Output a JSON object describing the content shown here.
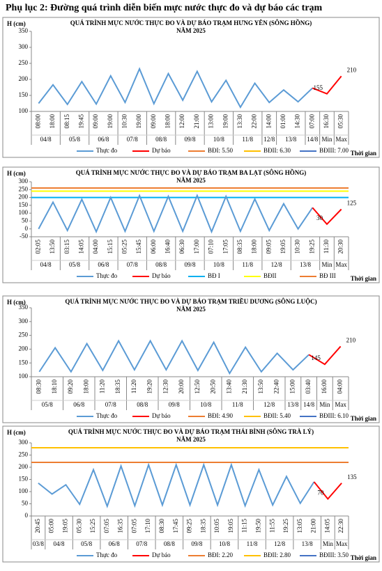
{
  "title": "Phụ lục 2: Đường quá trình diễn biến mực nước thực đo và dự báo các trạm",
  "chart_data": [
    {
      "type": "line",
      "title": "QUÁ TRÌNH MỰC NƯỚC THỰC ĐO VÀ DỰ BÁO TRẠM HƯNG YÊN  (SÔNG HỒNG)",
      "subtitle": "NĂM 2025",
      "y_label": "H (cm)",
      "x_label": "Thời gian",
      "categories": [
        "08:00",
        "18:00",
        "08:15",
        "19:45",
        "09:00",
        "19:00",
        "10:30",
        "19:00",
        "09:00",
        "18:00",
        "12:00",
        "21:00",
        "13:00",
        "19:00",
        "13:30",
        "22:00",
        "14:00",
        "01:00",
        "14:30",
        "07:00",
        "16:30",
        "05:30"
      ],
      "groups": [
        {
          "label": "04/8",
          "size": 2
        },
        {
          "label": "05/8",
          "size": 2
        },
        {
          "label": "06/8",
          "size": 2
        },
        {
          "label": "07/8",
          "size": 2
        },
        {
          "label": "08/8",
          "size": 2
        },
        {
          "label": "09/8",
          "size": 2
        },
        {
          "label": "10/8",
          "size": 2
        },
        {
          "label": "11/8",
          "size": 2
        },
        {
          "label": "12/8",
          "size": 1
        },
        {
          "label": "13/8",
          "size": 2
        },
        {
          "label": "14/8",
          "size": 1
        },
        {
          "label": "Min",
          "size": 1
        },
        {
          "label": "Max",
          "size": 1
        }
      ],
      "series": [
        {
          "name": "Thực đo",
          "color": "#5b9bd5",
          "values": [
            125,
            183,
            122,
            193,
            123,
            211,
            128,
            233,
            124,
            218,
            135,
            225,
            130,
            197,
            113,
            188,
            128,
            167,
            130,
            173,
            null,
            null
          ]
        },
        {
          "name": "Dự báo",
          "color": "#ff0000",
          "values": [
            null,
            null,
            null,
            null,
            null,
            null,
            null,
            null,
            null,
            null,
            null,
            null,
            null,
            null,
            null,
            null,
            null,
            null,
            null,
            173,
            155,
            210
          ]
        }
      ],
      "thresholds": [
        {
          "name": "BĐI: 5.50",
          "color": "#ed7d31"
        },
        {
          "name": "BĐII: 6.30",
          "color": "#ffc000"
        },
        {
          "name": "BĐIII: 7.00",
          "color": "#4472c4"
        }
      ],
      "ylim": [
        100,
        350
      ],
      "yticks": [
        100,
        150,
        200,
        250,
        300,
        350
      ]
    },
    {
      "type": "line",
      "title": "QUÁ TRÌNH MỰC NƯỚC THỰC ĐO VÀ DỰ BÁO TRẠM BA LẠT (SÔNG HỒNG)",
      "subtitle": "NĂM 2025",
      "y_label": "H (cm)",
      "x_label": "Thời gian",
      "categories": [
        "02:05",
        "13:50",
        "03:15",
        "14:05",
        "04:00",
        "15:15",
        "05:25",
        "15:45",
        "06:00",
        "16:40",
        "06:30",
        "17:00",
        "07:10",
        "17:05",
        "08:35",
        "18:00",
        "09:05",
        "19:05",
        "10:30",
        "19:25",
        "11:30",
        "20:30"
      ],
      "groups": [
        {
          "label": "04/8",
          "size": 2
        },
        {
          "label": "05/8",
          "size": 2
        },
        {
          "label": "06/8",
          "size": 2
        },
        {
          "label": "07/8",
          "size": 2
        },
        {
          "label": "08/8",
          "size": 2
        },
        {
          "label": "09/8",
          "size": 2
        },
        {
          "label": "10/8",
          "size": 2
        },
        {
          "label": "11/8",
          "size": 2
        },
        {
          "label": "12/8",
          "size": 2
        },
        {
          "label": "13/8",
          "size": 2
        },
        {
          "label": "Min",
          "size": 1
        },
        {
          "label": "Max",
          "size": 1
        }
      ],
      "series": [
        {
          "name": "Thực đo",
          "color": "#5b9bd5",
          "values": [
            0,
            170,
            -10,
            188,
            -18,
            200,
            -15,
            212,
            -15,
            207,
            -15,
            212,
            -18,
            207,
            -15,
            190,
            -10,
            160,
            0,
            135,
            null,
            null
          ]
        },
        {
          "name": "Dự báo",
          "color": "#ff0000",
          "values": [
            null,
            null,
            null,
            null,
            null,
            null,
            null,
            null,
            null,
            null,
            null,
            null,
            null,
            null,
            null,
            null,
            null,
            null,
            null,
            135,
            30,
            125
          ]
        }
      ],
      "thresholds": [
        {
          "name": "BĐ I",
          "color": "#00b0f0",
          "value": 200
        },
        {
          "name": "BĐII",
          "color": "#ffff00",
          "value": 240
        },
        {
          "name": "BĐ III",
          "color": "#ed7d31",
          "value": 260
        }
      ],
      "ylim": [
        -50,
        300
      ],
      "yticks": [
        -50,
        0,
        50,
        100,
        150,
        200,
        250,
        300
      ]
    },
    {
      "type": "line",
      "title": "QUÁ TRÌNH MỰC NƯỚC THỰC ĐO VÀ DỰ BÁO TRẠM TRIỀU DƯƠNG  (SÔNG LUỘC)",
      "subtitle": "NĂM 2025",
      "y_label": "H (cm)",
      "x_label": "Thời gian",
      "categories": [
        "08:30",
        "18:10",
        "09:20",
        "18:00",
        "11:20",
        "18:35",
        "11:20",
        "19:20",
        "12:30",
        "20:00",
        "12:50",
        "20:50",
        "13:40",
        "21:30",
        "13:50",
        "22:40",
        "15:00",
        "03:40",
        "16:00",
        "04:00"
      ],
      "groups": [
        {
          "label": "05/8",
          "size": 2
        },
        {
          "label": "06/8",
          "size": 2
        },
        {
          "label": "07/8",
          "size": 2
        },
        {
          "label": "08/8",
          "size": 2
        },
        {
          "label": "09/8",
          "size": 2
        },
        {
          "label": "10/8",
          "size": 2
        },
        {
          "label": "11/8",
          "size": 2
        },
        {
          "label": "12/8",
          "size": 2
        },
        {
          "label": "13/8",
          "size": 1
        },
        {
          "label": "14/8",
          "size": 1
        },
        {
          "label": "Min",
          "size": 1
        },
        {
          "label": "Max",
          "size": 1
        }
      ],
      "series": [
        {
          "name": "Thực đo",
          "color": "#5b9bd5",
          "values": [
            118,
            205,
            118,
            220,
            123,
            230,
            125,
            230,
            125,
            230,
            123,
            225,
            112,
            207,
            118,
            185,
            125,
            180,
            null,
            null
          ]
        },
        {
          "name": "Dự báo",
          "color": "#ff0000",
          "values": [
            null,
            null,
            null,
            null,
            null,
            null,
            null,
            null,
            null,
            null,
            null,
            null,
            null,
            null,
            null,
            null,
            null,
            180,
            145,
            210
          ]
        }
      ],
      "thresholds": [
        {
          "name": "BĐI: 4.90",
          "color": "#ed7d31"
        },
        {
          "name": "BĐII: 5.40",
          "color": "#ffc000"
        },
        {
          "name": "BĐIII: 6.10",
          "color": "#4472c4"
        }
      ],
      "ylim": [
        100,
        350
      ],
      "yticks": [
        100,
        150,
        200,
        250,
        300,
        350
      ]
    },
    {
      "type": "line",
      "title": "QUÁ TRÌNH MỰC NƯỚC THỰC ĐO VÀ DỰ BÁO TRẠM THÁI BÌNH (SÔNG TRÀ LÝ)",
      "subtitle": "NĂM 2025",
      "y_label": "H (cm)",
      "x_label": "Thời gian",
      "categories": [
        "20:45",
        "05:00",
        "19:05",
        "05:30",
        "15:25",
        "07:05",
        "16:35",
        "07:05",
        "17:10",
        "08:30",
        "17:45",
        "09:25",
        "18:35",
        "10:05",
        "19:05",
        "11:15",
        "19:50",
        "11:55",
        "19:25",
        "13:05",
        "21:00",
        "14:05",
        "22:30"
      ],
      "groups": [
        {
          "label": "03/8",
          "size": 1
        },
        {
          "label": "04/8",
          "size": 2
        },
        {
          "label": "05/8",
          "size": 2
        },
        {
          "label": "06/8",
          "size": 2
        },
        {
          "label": "07/8",
          "size": 2
        },
        {
          "label": "08/8",
          "size": 2
        },
        {
          "label": "09/8",
          "size": 2
        },
        {
          "label": "10/8",
          "size": 2
        },
        {
          "label": "11/8",
          "size": 2
        },
        {
          "label": "12/8",
          "size": 2
        },
        {
          "label": "13/8",
          "size": 2
        },
        {
          "label": "Min",
          "size": 1
        },
        {
          "label": "Max",
          "size": 1
        }
      ],
      "series": [
        {
          "name": "Thực đo",
          "color": "#5b9bd5",
          "values": [
            135,
            90,
            128,
            48,
            190,
            40,
            205,
            42,
            210,
            45,
            210,
            45,
            210,
            45,
            210,
            42,
            190,
            45,
            162,
            52,
            140,
            null,
            null
          ]
        },
        {
          "name": "Dự báo",
          "color": "#ff0000",
          "values": [
            null,
            null,
            null,
            null,
            null,
            null,
            null,
            null,
            null,
            null,
            null,
            null,
            null,
            null,
            null,
            null,
            null,
            null,
            null,
            null,
            140,
            70,
            135
          ]
        }
      ],
      "thresholds": [
        {
          "name": "BĐI: 2.20",
          "color": "#ed7d31",
          "value": 220
        },
        {
          "name": "BĐII: 2.80",
          "color": "#ffc000",
          "value": 280
        },
        {
          "name": "BĐIII: 3.50",
          "color": "#4472c4"
        }
      ],
      "ylim": [
        0,
        300
      ],
      "yticks": [
        0,
        50,
        100,
        150,
        200,
        250,
        300
      ]
    }
  ]
}
